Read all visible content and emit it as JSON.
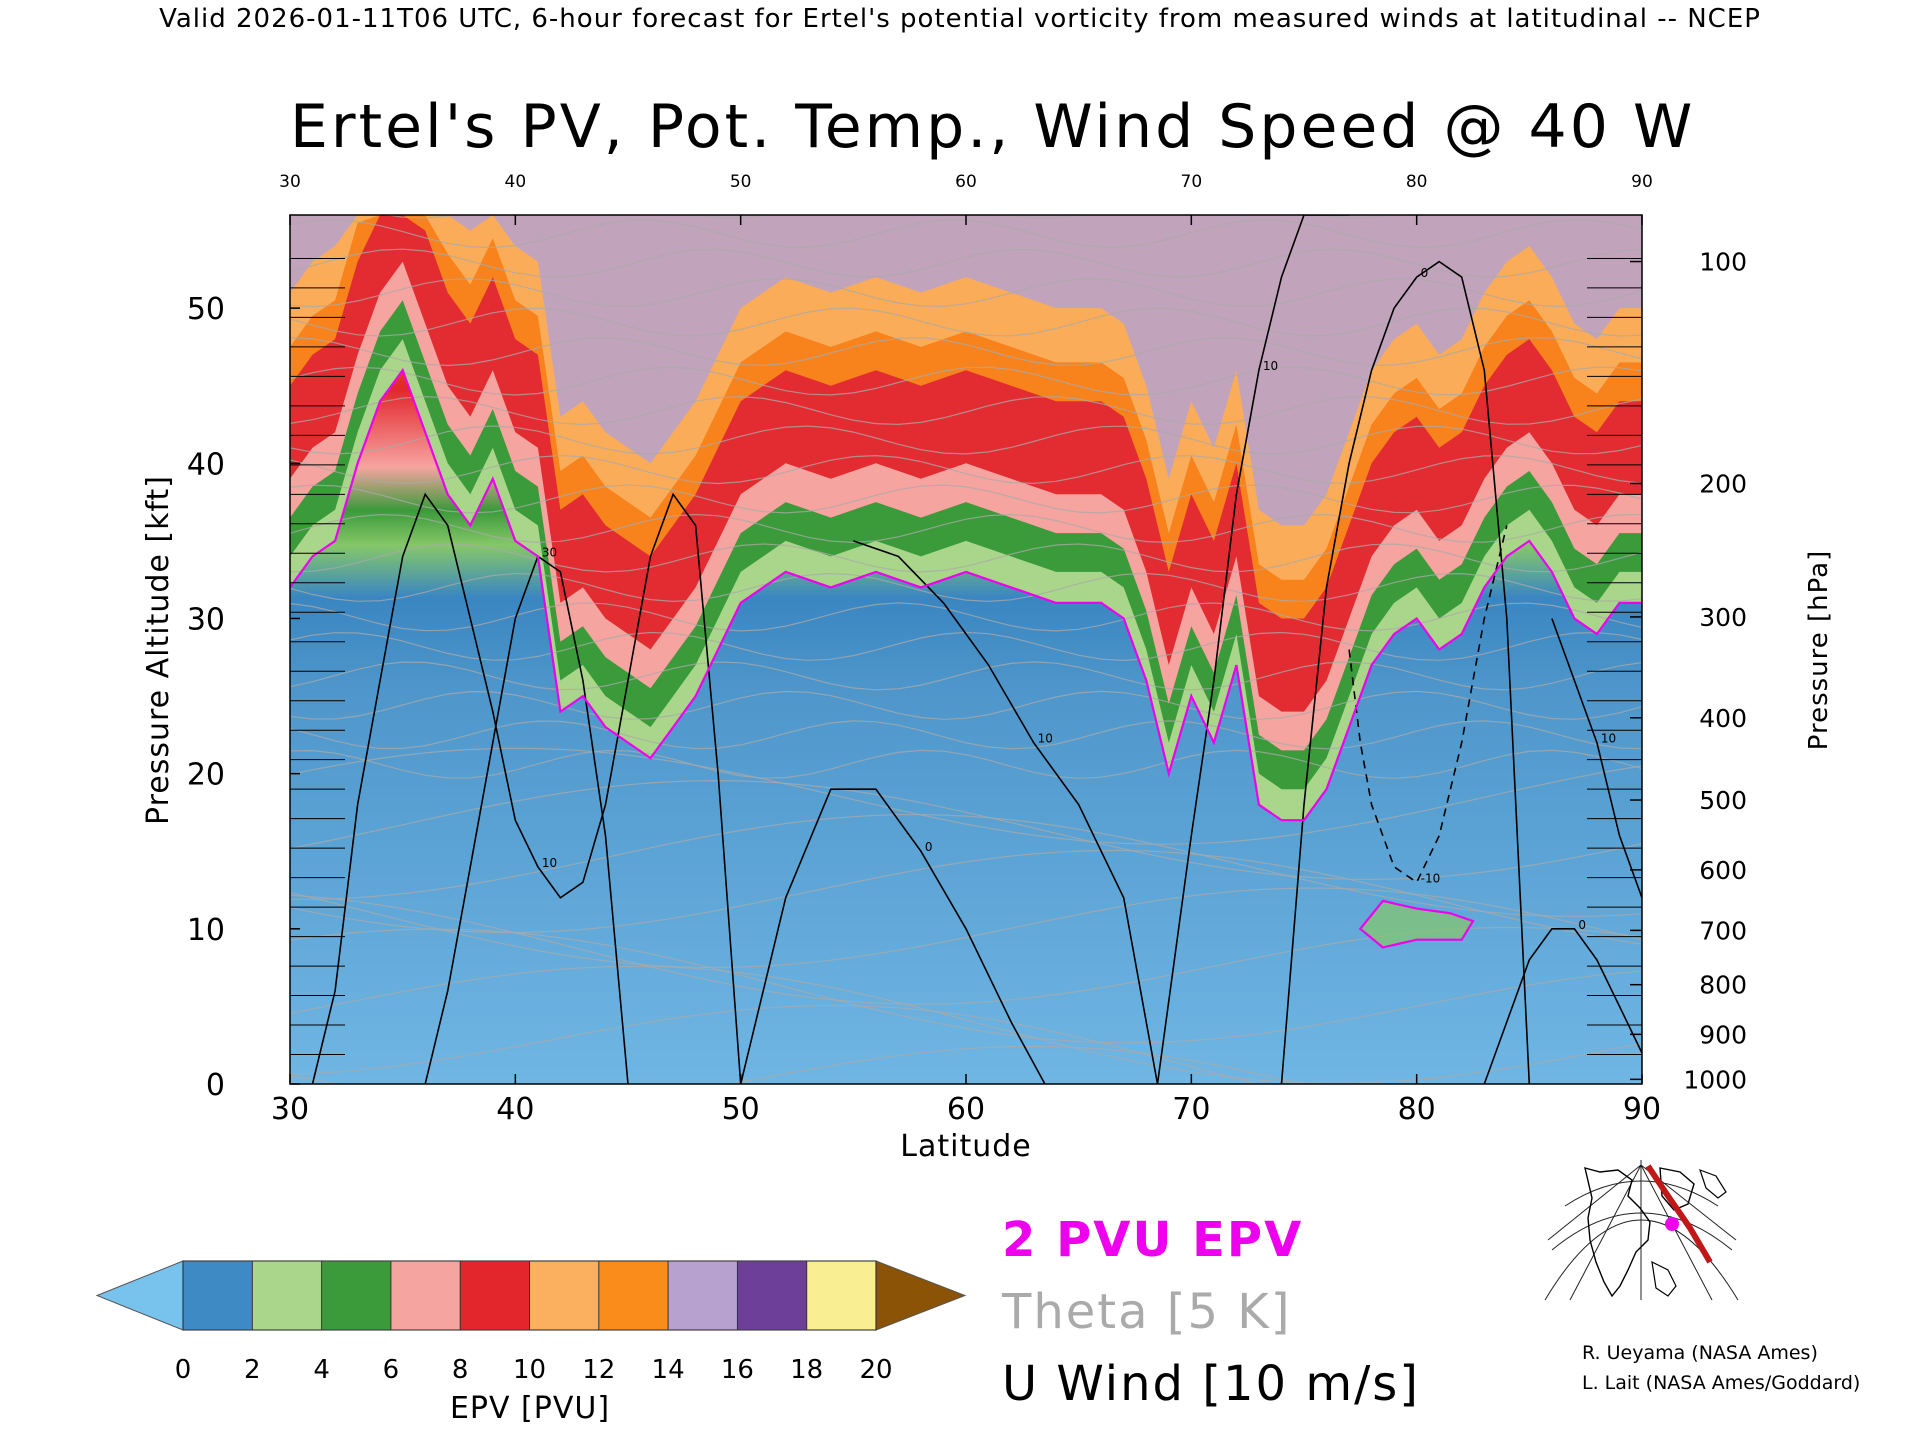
{
  "header": "Valid 2026-01-11T06 UTC, 6-hour forecast for Ertel's potential vorticity from measured winds at latitudinal -- NCEP",
  "chart_data": {
    "type": "heatmap",
    "title": "Ertel's PV, Pot. Temp., Wind Speed @ 40 W",
    "xlabel": "Latitude",
    "ylabel": "Pressure Altitude [kft]",
    "y2label": "Pressure [hPa]",
    "xlim": [
      30,
      90
    ],
    "ylim": [
      0,
      56
    ],
    "x_ticks": [
      "30",
      "40",
      "50",
      "60",
      "70",
      "80",
      "90"
    ],
    "top_ticks": [
      "30",
      "40",
      "50",
      "60",
      "70",
      "80",
      "90"
    ],
    "y_ticks": [
      "0",
      "10",
      "20",
      "30",
      "40",
      "50"
    ],
    "pressure_ticks": [
      {
        "label": "100",
        "kft": 53.0
      },
      {
        "label": "200",
        "kft": 38.7
      },
      {
        "label": "300",
        "kft": 30.1
      },
      {
        "label": "400",
        "kft": 23.6
      },
      {
        "label": "500",
        "kft": 18.3
      },
      {
        "label": "600",
        "kft": 13.8
      },
      {
        "label": "700",
        "kft": 9.9
      },
      {
        "label": "800",
        "kft": 6.4
      },
      {
        "label": "900",
        "kft": 3.2
      },
      {
        "label": "1000",
        "kft": 0.3
      }
    ],
    "tropopause_2pvu": {
      "lat": [
        30,
        31,
        32,
        33,
        34,
        35,
        36,
        37,
        38,
        39,
        40,
        41,
        42,
        43,
        44,
        45,
        46,
        47,
        48,
        49,
        50,
        52,
        54,
        56,
        58,
        60,
        62,
        64,
        66,
        67,
        68,
        69,
        70,
        71,
        72,
        73,
        74,
        75,
        76,
        77,
        78,
        79,
        80,
        81,
        82,
        83,
        84,
        85,
        86,
        87,
        88,
        89,
        90
      ],
      "kft": [
        32,
        34,
        35,
        40,
        44,
        46,
        42,
        38,
        36,
        39,
        35,
        34,
        24,
        25,
        23,
        22,
        21,
        23,
        25,
        28,
        31,
        33,
        32,
        33,
        32,
        33,
        32,
        31,
        31,
        30,
        26,
        20,
        25,
        22,
        27,
        18,
        17,
        17,
        19,
        23,
        27,
        29,
        30,
        28,
        29,
        32,
        34,
        35,
        33,
        30,
        29,
        31,
        31
      ]
    },
    "lower_2pvu_patch": {
      "lat": [
        77.5,
        78.5,
        80,
        81.5,
        82.5,
        82,
        80,
        78.5,
        77.5
      ],
      "kft": [
        10,
        11.8,
        11.3,
        11,
        10.5,
        9.3,
        9.3,
        8.8,
        10
      ]
    },
    "u_wind_contours": [
      {
        "label": "10",
        "lat": [
          31,
          32,
          33,
          34,
          35,
          36,
          37,
          38,
          39,
          40,
          41,
          42,
          43,
          44,
          45,
          46,
          47,
          48,
          49,
          50
        ],
        "kft": [
          0,
          6,
          18,
          26,
          34,
          38,
          36,
          30,
          24,
          17,
          14,
          12,
          13,
          18,
          26,
          34,
          38,
          36,
          20,
          0
        ]
      },
      {
        "label": "30",
        "lat": [
          36,
          37,
          38,
          39,
          40,
          41,
          42,
          43,
          44,
          45
        ],
        "kft": [
          0,
          6,
          14,
          22,
          30,
          34,
          33,
          26,
          16,
          0
        ]
      },
      {
        "label": "0",
        "lat": [
          50,
          52,
          54,
          56,
          58,
          60,
          62,
          63.5
        ],
        "kft": [
          0,
          12,
          19,
          19,
          15,
          10,
          4,
          0
        ]
      },
      {
        "label": "10",
        "lat": [
          55,
          57,
          59,
          61,
          63,
          65,
          67,
          68.5
        ],
        "kft": [
          35,
          34,
          31,
          27,
          22,
          18,
          12,
          0
        ]
      },
      {
        "label": "10",
        "lat": [
          68.5,
          70,
          71,
          72,
          73,
          74,
          75,
          76,
          77
        ],
        "kft": [
          0,
          16,
          26,
          38,
          46,
          52,
          56,
          56,
          56
        ]
      },
      {
        "label": "0",
        "lat": [
          74,
          75,
          76,
          77,
          78,
          79,
          80,
          81,
          82,
          83,
          84,
          85
        ],
        "kft": [
          0,
          18,
          32,
          40,
          46,
          50,
          52,
          53,
          52,
          46,
          30,
          0
        ]
      },
      {
        "label": "-10",
        "lat": [
          77,
          77.5,
          78,
          79,
          80,
          81,
          82,
          83,
          84
        ],
        "kft": [
          28,
          22,
          18,
          14,
          13,
          16,
          22,
          30,
          36
        ]
      },
      {
        "label": "0",
        "lat": [
          83,
          84,
          85,
          86,
          87,
          88,
          89,
          90
        ],
        "kft": [
          0,
          4,
          8,
          10,
          10,
          8,
          5,
          2
        ]
      },
      {
        "label": "10",
        "lat": [
          86,
          87,
          88,
          89,
          90
        ],
        "kft": [
          30,
          26,
          22,
          16,
          12
        ]
      }
    ],
    "color_scale": {
      "label": "EPV [PVU]",
      "ticks": [
        "0",
        "2",
        "4",
        "6",
        "8",
        "10",
        "12",
        "14",
        "16",
        "18",
        "20"
      ],
      "colors": [
        "#78c3ee",
        "#3e8ac4",
        "#a9d68a",
        "#3b9a3a",
        "#f6a4a0",
        "#e2262c",
        "#fbb060",
        "#f98c1a",
        "#b7a1ce",
        "#6e3f99",
        "#f9ee92",
        "#8b5306"
      ]
    },
    "legend": [
      {
        "label": "2 PVU EPV",
        "color": "#ee00ee"
      },
      {
        "label": "Theta [5 K]",
        "color": "#aaaaaa"
      },
      {
        "label": "U Wind [10 m/s]",
        "color": "#000000"
      }
    ]
  },
  "inset_map": {
    "marker_color": "#ee00ee",
    "track_color": "#c01818"
  },
  "credits": [
    "R. Ueyama (NASA Ames)",
    "L. Lait (NASA Ames/Goddard)"
  ]
}
